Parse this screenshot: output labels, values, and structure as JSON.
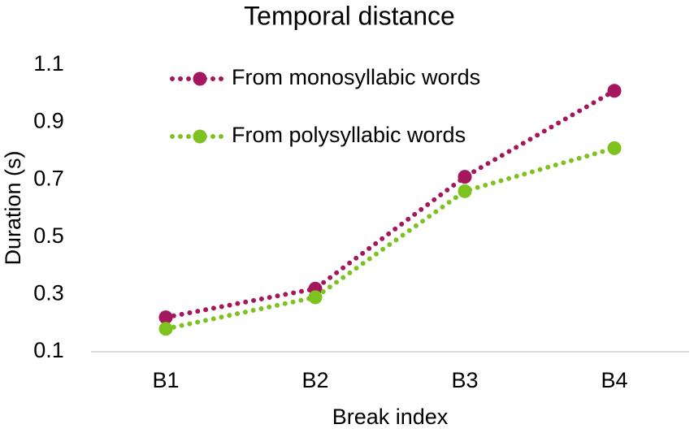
{
  "chart_data": {
    "type": "line",
    "title": "Temporal distance",
    "x_label": "Break index",
    "y_label": "Duration (s)",
    "categories": [
      "B1",
      "B2",
      "B3",
      "B4"
    ],
    "series": [
      {
        "name": "From monosyllabic words",
        "color": "#a5175c",
        "values": [
          0.22,
          0.32,
          0.71,
          1.01
        ]
      },
      {
        "name": "From polysyllabic words",
        "color": "#7dc21e",
        "values": [
          0.18,
          0.29,
          0.66,
          0.81
        ]
      }
    ],
    "ylim": [
      0.1,
      1.1
    ],
    "yticks": [
      0.1,
      0.3,
      0.5,
      0.7,
      0.9,
      1.1
    ],
    "grid": false,
    "legend": "top-left"
  }
}
